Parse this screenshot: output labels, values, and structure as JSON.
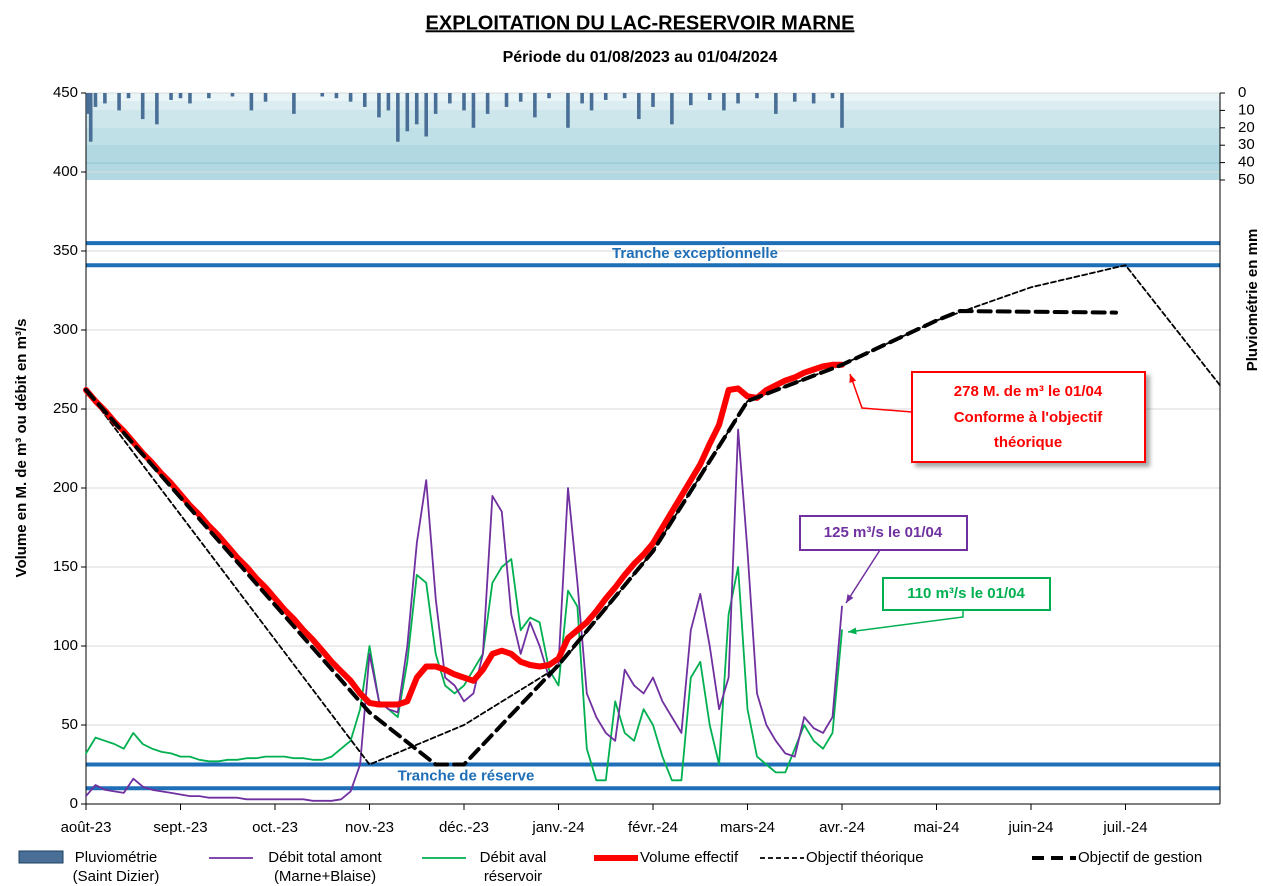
{
  "chart_data": {
    "type": "line",
    "title": "EXPLOITATION  DU  LAC-RESERVOIR  MARNE",
    "subtitle": "Période du 01/08/2023 au 01/04/2024",
    "y_label": "Volume en M. de m³ ou débit en m³/s",
    "y2_label": "Pluviométrie en mm",
    "xlim": [
      0,
      12
    ],
    "xticks": [
      {
        "value": 0,
        "label": "août-23"
      },
      {
        "value": 1,
        "label": "sept.-23"
      },
      {
        "value": 2,
        "label": "oct.-23"
      },
      {
        "value": 3,
        "label": "nov.-23"
      },
      {
        "value": 4,
        "label": "déc.-23"
      },
      {
        "value": 5,
        "label": "janv.-24"
      },
      {
        "value": 6,
        "label": "févr.-24"
      },
      {
        "value": 7,
        "label": "mars-24"
      },
      {
        "value": 8,
        "label": "avr.-24"
      },
      {
        "value": 9,
        "label": "mai-24"
      },
      {
        "value": 10,
        "label": "juin-24"
      },
      {
        "value": 11,
        "label": "juil.-24"
      }
    ],
    "ylim": [
      0,
      450
    ],
    "yticks": [
      0,
      50,
      100,
      150,
      200,
      250,
      300,
      350,
      400,
      450
    ],
    "y2lim": [
      0,
      50
    ],
    "y2ticks": [
      0,
      10,
      20,
      30,
      40,
      50
    ],
    "y2_inverted": true,
    "grid": true,
    "bands": [
      {
        "label": "Tranche exceptionnelle",
        "lower": 341,
        "upper": 355,
        "color": "#1f6fb8"
      },
      {
        "label": "Tranche de réserve",
        "lower": 10,
        "upper": 25,
        "color": "#1f6fb8"
      }
    ],
    "x": [
      0,
      0.1,
      0.2,
      0.3,
      0.4,
      0.5,
      0.6,
      0.7,
      0.8,
      0.9,
      1,
      1.1,
      1.2,
      1.3,
      1.4,
      1.5,
      1.6,
      1.7,
      1.8,
      1.9,
      2,
      2.1,
      2.2,
      2.3,
      2.4,
      2.5,
      2.6,
      2.7,
      2.8,
      2.9,
      3,
      3.1,
      3.2,
      3.3,
      3.4,
      3.5,
      3.6,
      3.7,
      3.8,
      3.9,
      4,
      4.1,
      4.2,
      4.3,
      4.4,
      4.5,
      4.6,
      4.7,
      4.8,
      4.9,
      5,
      5.1,
      5.2,
      5.3,
      5.4,
      5.5,
      5.6,
      5.7,
      5.8,
      5.9,
      6,
      6.1,
      6.2,
      6.3,
      6.4,
      6.5,
      6.6,
      6.7,
      6.8,
      6.9,
      7,
      7.1,
      7.2,
      7.3,
      7.4,
      7.5,
      7.6,
      7.7,
      7.8,
      7.9,
      8
    ],
    "series": [
      {
        "name": "Pluviométrie (Saint Dizier)",
        "mark": "bar",
        "axis": "y2",
        "color": "#4a6f96",
        "x": [
          0.02,
          0.05,
          0.1,
          0.2,
          0.35,
          0.45,
          0.6,
          0.75,
          0.9,
          1.0,
          1.1,
          1.3,
          1.55,
          1.75,
          1.9,
          2.2,
          2.5,
          2.65,
          2.8,
          2.95,
          3.1,
          3.2,
          3.3,
          3.4,
          3.5,
          3.6,
          3.7,
          3.85,
          4.0,
          4.1,
          4.25,
          4.45,
          4.6,
          4.75,
          4.9,
          5.1,
          5.25,
          5.35,
          5.5,
          5.7,
          5.85,
          6.0,
          6.2,
          6.4,
          6.6,
          6.75,
          6.9,
          7.1,
          7.3,
          7.5,
          7.7,
          7.9,
          8.0
        ],
        "values": [
          12,
          28,
          8,
          6,
          10,
          3,
          15,
          18,
          4,
          3,
          6,
          3,
          2,
          10,
          5,
          12,
          2,
          3,
          5,
          8,
          14,
          10,
          28,
          22,
          18,
          25,
          12,
          6,
          10,
          20,
          12,
          8,
          5,
          14,
          3,
          20,
          6,
          10,
          4,
          3,
          15,
          8,
          18,
          7,
          4,
          10,
          6,
          3,
          12,
          5,
          6,
          3,
          20
        ]
      },
      {
        "name": "Débit total amont (Marne+Blaise)",
        "style": "solid",
        "color": "#7030a0",
        "values": [
          5,
          12,
          9,
          8,
          7,
          16,
          11,
          9,
          8,
          7,
          6,
          5,
          5,
          4,
          4,
          4,
          4,
          3,
          3,
          3,
          3,
          3,
          3,
          3,
          2,
          2,
          2,
          3,
          8,
          25,
          95,
          65,
          60,
          58,
          100,
          165,
          205,
          130,
          80,
          75,
          65,
          70,
          95,
          195,
          185,
          120,
          95,
          115,
          100,
          80,
          88,
          200,
          140,
          70,
          55,
          45,
          40,
          85,
          75,
          70,
          80,
          65,
          55,
          45,
          110,
          133,
          100,
          60,
          80,
          237,
          160,
          70,
          50,
          40,
          32,
          30,
          55,
          48,
          45,
          55,
          125
        ]
      },
      {
        "name": "Débit aval réservoir",
        "style": "solid",
        "color": "#00b050",
        "values": [
          32,
          42,
          40,
          38,
          35,
          45,
          38,
          35,
          33,
          32,
          30,
          30,
          28,
          27,
          27,
          28,
          28,
          29,
          29,
          30,
          30,
          30,
          29,
          29,
          28,
          28,
          30,
          35,
          40,
          60,
          100,
          65,
          60,
          55,
          90,
          145,
          140,
          95,
          75,
          70,
          75,
          85,
          95,
          140,
          150,
          155,
          110,
          118,
          115,
          85,
          75,
          135,
          125,
          35,
          15,
          15,
          65,
          45,
          40,
          60,
          50,
          30,
          15,
          15,
          80,
          90,
          50,
          25,
          120,
          150,
          60,
          30,
          25,
          20,
          20,
          35,
          50,
          40,
          35,
          45,
          110
        ]
      },
      {
        "name": "Volume effectif",
        "style": "thick",
        "color": "#ff0000",
        "values": [
          262,
          255,
          249,
          242,
          236,
          229,
          222,
          216,
          209,
          203,
          196,
          189,
          183,
          176,
          170,
          163,
          156,
          150,
          143,
          137,
          130,
          123,
          117,
          110,
          104,
          97,
          90,
          84,
          78,
          70,
          64,
          63,
          63,
          63,
          65,
          80,
          87,
          87,
          85,
          82,
          80,
          78,
          85,
          95,
          97,
          95,
          90,
          88,
          87,
          88,
          92,
          105,
          110,
          115,
          122,
          130,
          137,
          145,
          152,
          158,
          165,
          175,
          185,
          195,
          205,
          215,
          228,
          240,
          262,
          263,
          258,
          257,
          262,
          265,
          268,
          270,
          273,
          275,
          277,
          278,
          278
        ]
      },
      {
        "name": "Objectif théorique",
        "style": "dashed",
        "color": "#000000",
        "x": [
          0,
          3,
          4,
          5,
          6,
          7,
          8,
          9,
          10,
          11,
          12
        ],
        "values": [
          262,
          25,
          50,
          87,
          160,
          255,
          278,
          306,
          327,
          341,
          265
        ]
      },
      {
        "name": "Objectif de gestion",
        "style": "thick-dashed",
        "color": "#000000",
        "x": [
          0,
          3,
          3.7,
          4,
          5,
          6,
          7,
          8,
          9,
          9.25,
          10.9
        ],
        "values": [
          262,
          58,
          25,
          25,
          88,
          160,
          255,
          278,
          306,
          312,
          311
        ]
      }
    ],
    "annotations": [
      {
        "text": [
          "278 M. de m³ le 01/04",
          "Conforme à l'objectif",
          "théorique"
        ],
        "color": "#ff0000"
      },
      {
        "text": [
          "125 m³/s le 01/04"
        ],
        "color": "#7030a0"
      },
      {
        "text": [
          "110 m³/s le 01/04"
        ],
        "color": "#00b050"
      }
    ]
  }
}
